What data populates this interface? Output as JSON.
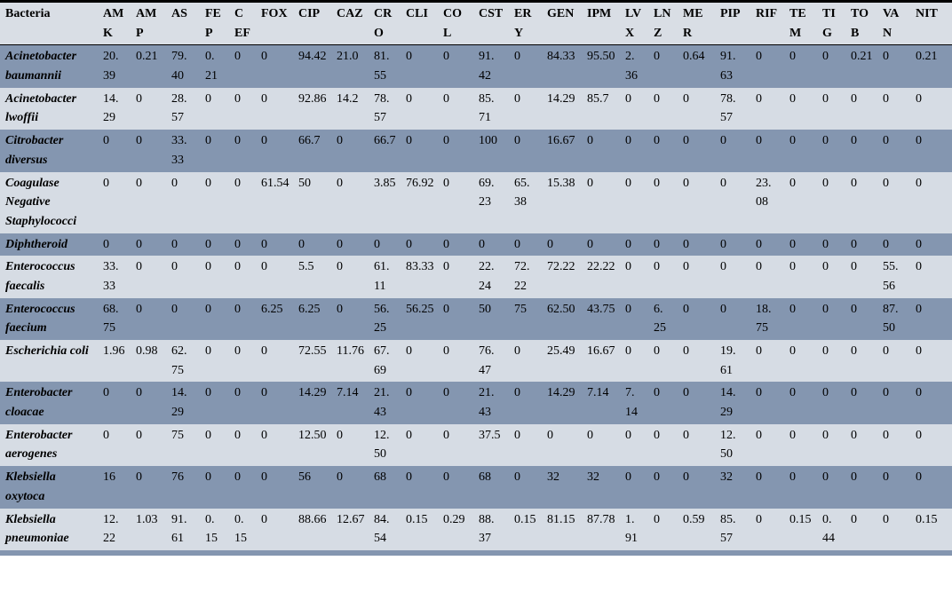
{
  "colors": {
    "header_bg": "#d9dee5",
    "row_dark_bg": "#8496b0",
    "row_light_bg": "#d6dce4",
    "border": "#000000",
    "text": "#000000"
  },
  "table": {
    "columns": [
      "Bacteria",
      "AMK",
      "AMP",
      "AS",
      "FEP",
      "CEF",
      "FOX",
      "CIP",
      "CAZ",
      "CRO",
      "CLI",
      "COL",
      "CST",
      "ERY",
      "GEN",
      "IPM",
      "LVX",
      "LNZ",
      "MER",
      "PIP",
      "RIF",
      "TEM",
      "TIG",
      "TOB",
      "VAN",
      "NIT"
    ],
    "rows": [
      {
        "bacteria": "Acinetobacter baumannii",
        "values": [
          "20.39",
          "0.21",
          "79.40",
          "0.21",
          "0",
          "0",
          "94.42",
          "21.0",
          "81.55",
          "0",
          "0",
          "91.42",
          "0",
          "84.33",
          "95.50",
          "2.36",
          "0",
          "0.64",
          "91.63",
          "0",
          "0",
          "0",
          "0.21",
          "0",
          "0.21"
        ]
      },
      {
        "bacteria": "Acinetobacter lwoffii",
        "values": [
          "14.29",
          "0",
          "28.57",
          "0",
          "0",
          "0",
          "92.86",
          "14.2",
          "78.57",
          "0",
          "0",
          "85.71",
          "0",
          "14.29",
          "85.7",
          "0",
          "0",
          "0",
          "78.57",
          "0",
          "0",
          "0",
          "0",
          "0",
          "0"
        ]
      },
      {
        "bacteria": "Citrobacter diversus",
        "values": [
          "0",
          "0",
          "33.33",
          "0",
          "0",
          "0",
          "66.7",
          "0",
          "66.7",
          "0",
          "0",
          "100",
          "0",
          "16.67",
          "0",
          "0",
          "0",
          "0",
          "0",
          "0",
          "0",
          "0",
          "0",
          "0",
          "0"
        ]
      },
      {
        "bacteria": "Coagulase Negative Staphylococci",
        "values": [
          "0",
          "0",
          "0",
          "0",
          "0",
          "61.54",
          "50",
          "0",
          "3.85",
          "76.92",
          "0",
          "69.23",
          "65.38",
          "15.38",
          "0",
          "0",
          "0",
          "0",
          "0",
          "23.08",
          "0",
          "0",
          "0",
          "0",
          "0"
        ]
      },
      {
        "bacteria": "Diphtheroid",
        "values": [
          "0",
          "0",
          "0",
          "0",
          "0",
          "0",
          "0",
          "0",
          "0",
          "0",
          "0",
          "0",
          "0",
          "0",
          "0",
          "0",
          "0",
          "0",
          "0",
          "0",
          "0",
          "0",
          "0",
          "0",
          "0"
        ]
      },
      {
        "bacteria": "Enterococcus faecalis",
        "values": [
          "33.33",
          "0",
          "0",
          "0",
          "0",
          "0",
          "5.5",
          "0",
          "61.11",
          "83.33",
          "0",
          "22.24",
          "72.22",
          "72.22",
          "22.22",
          "0",
          "0",
          "0",
          "0",
          "0",
          "0",
          "0",
          "0",
          "55.56",
          "0"
        ]
      },
      {
        "bacteria": "Enterococcus faecium",
        "values": [
          "68.75",
          "0",
          "0",
          "0",
          "0",
          "6.25",
          "6.25",
          "0",
          "56.25",
          "56.25",
          "0",
          "50",
          "75",
          "62.50",
          "43.75",
          "0",
          "6.25",
          "0",
          "0",
          "18.75",
          "0",
          "0",
          "0",
          "87.50",
          "0"
        ]
      },
      {
        "bacteria": "Escherichia coli",
        "values": [
          "1.96",
          "0.98",
          "62.75",
          "0",
          "0",
          "0",
          "72.55",
          "11.76",
          "67.69",
          "0",
          "0",
          "76.47",
          "0",
          "25.49",
          "16.67",
          "0",
          "0",
          "0",
          "19.61",
          "0",
          "0",
          "0",
          "0",
          "0",
          "0"
        ]
      },
      {
        "bacteria": "Enterobacter cloacae",
        "values": [
          "0",
          "0",
          "14.29",
          "0",
          "0",
          "0",
          "14.29",
          "7.14",
          "21.43",
          "0",
          "0",
          "21.43",
          "0",
          "14.29",
          "7.14",
          "7.14",
          "0",
          "0",
          "14.29",
          "0",
          "0",
          "0",
          "0",
          "0",
          "0"
        ]
      },
      {
        "bacteria": "Enterobacter aerogenes",
        "values": [
          "0",
          "0",
          "75",
          "0",
          "0",
          "0",
          "12.50",
          "0",
          "12.50",
          "0",
          "0",
          "37.5",
          "0",
          "0",
          "0",
          "0",
          "0",
          "0",
          "12.50",
          "0",
          "0",
          "0",
          "0",
          "0",
          "0"
        ]
      },
      {
        "bacteria": "Klebsiella oxytoca",
        "values": [
          "16",
          "0",
          "76",
          "0",
          "0",
          "0",
          "56",
          "0",
          "68",
          "0",
          "0",
          "68",
          "0",
          "32",
          "32",
          "0",
          "0",
          "0",
          "32",
          "0",
          "0",
          "0",
          "0",
          "0",
          "0"
        ]
      },
      {
        "bacteria": "Klebsiella pneumoniae",
        "values": [
          "12.22",
          "1.03",
          "91.61",
          "0.15",
          "0.15",
          "0",
          "88.66",
          "12.67",
          "84.54",
          "0.15",
          "0.29",
          "88.37",
          "0.15",
          "81.15",
          "87.78",
          "1.91",
          "0",
          "0.59",
          "85.57",
          "0",
          "0.15",
          "0.44",
          "0",
          "0",
          "0.15"
        ]
      }
    ]
  }
}
